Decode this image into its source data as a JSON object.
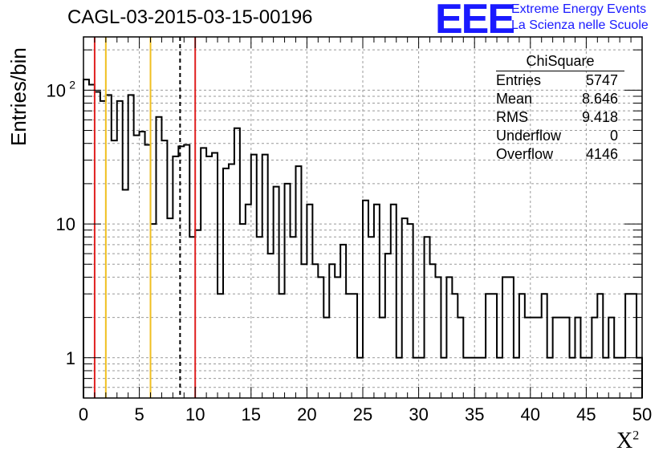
{
  "title": "CAGL-03-2015-03-15-00196",
  "logo": {
    "mark": "EEE",
    "line1": "Extreme Energy Events",
    "line2": "La Scienza nelle Scuole"
  },
  "stats": {
    "name": "ChiSquare",
    "rows": [
      {
        "label": "Entries",
        "value": "5747"
      },
      {
        "label": "Mean",
        "value": "8.646"
      },
      {
        "label": "RMS",
        "value": "9.418"
      },
      {
        "label": "Underflow",
        "value": "0"
      },
      {
        "label": "Overflow",
        "value": "4146"
      }
    ]
  },
  "chart_data": {
    "type": "bar",
    "title": "CAGL-03-2015-03-15-00196",
    "xlabel_main": "X",
    "xlabel_sup": "2",
    "ylabel": "Entries/bin",
    "xlim": [
      0,
      50
    ],
    "ylim": [
      0.5,
      250
    ],
    "yscale": "log",
    "grid": true,
    "bin_width": 0.5,
    "x_ticks": [
      "0",
      "5",
      "10",
      "15",
      "20",
      "25",
      "30",
      "35",
      "40",
      "45",
      "50"
    ],
    "y_tick_labels": [
      {
        "value": 1,
        "base": "1",
        "exp": ""
      },
      {
        "value": 10,
        "base": "10",
        "exp": ""
      },
      {
        "value": 100,
        "base": "10",
        "exp": "2"
      }
    ],
    "values": [
      120,
      110,
      97,
      83,
      92,
      42,
      83,
      18,
      92,
      46,
      49,
      39,
      10,
      63,
      42,
      11,
      32,
      38,
      39,
      8,
      9,
      37,
      32,
      34,
      3,
      26,
      28,
      52,
      10,
      14,
      33,
      8,
      33,
      6,
      19,
      3,
      20,
      8,
      27,
      5,
      14,
      5,
      4,
      2,
      5,
      4,
      7,
      3,
      3,
      1,
      15,
      8,
      14,
      2,
      6,
      14,
      1,
      11,
      10,
      1,
      1,
      8,
      5,
      4,
      1,
      4,
      3,
      2,
      1,
      1,
      1,
      1,
      3,
      3,
      1,
      4,
      4,
      1,
      3,
      2,
      2,
      2,
      3,
      1,
      2,
      2,
      2,
      1,
      2,
      1,
      1,
      2,
      3,
      1,
      2,
      1,
      1,
      3,
      3,
      1
    ],
    "vlines": [
      {
        "x": 1,
        "color": "#e02020",
        "style": "solid"
      },
      {
        "x": 2,
        "color": "#f0c020",
        "style": "solid"
      },
      {
        "x": 6,
        "color": "#f0c020",
        "style": "solid"
      },
      {
        "x": 8.646,
        "color": "#000000",
        "style": "dashed"
      },
      {
        "x": 10,
        "color": "#e02020",
        "style": "solid"
      }
    ]
  }
}
